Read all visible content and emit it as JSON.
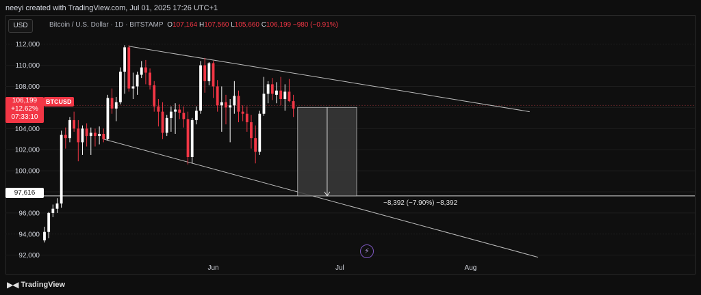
{
  "header": {
    "credit": "neeyi created with TradingView.com, Jul 01, 2025 17:26 UTC+1"
  },
  "toolbar": {
    "currency_label": "USD"
  },
  "symbol_info": {
    "name": "Bitcoin / U.S. Dollar · 1D · BITSTAMP",
    "open_label": "O",
    "open": "107,164",
    "high_label": "H",
    "high": "107,560",
    "low_label": "L",
    "low": "105,660",
    "close_label": "C",
    "close": "106,199",
    "change": "−980 (−0.91%)"
  },
  "price_badge": {
    "price": "106,199",
    "change": "+12.62%",
    "countdown": "07:33:10",
    "symbol": "BTCUSD"
  },
  "level_badge": {
    "price": "97,616"
  },
  "measurement": {
    "label": "−8,392 (−7.90%) −8,392"
  },
  "footer": {
    "brand": "TradingView"
  },
  "colors": {
    "up": "#ffffff",
    "down": "#f23645",
    "background": "#0f0f0f",
    "grid": "#1e1e1e"
  },
  "icons": {
    "logo": "tradingview-logo-icon",
    "bolt": "lightning-icon"
  },
  "chart_data": {
    "type": "candlestick",
    "y_axis": {
      "ticks": [
        92000,
        94000,
        96000,
        98000,
        100000,
        102000,
        104000,
        106000,
        108000,
        110000,
        112000
      ],
      "tick_labels": [
        "92,000",
        "94,000",
        "96,000",
        "98,000",
        "100,000",
        "102,000",
        "104,000",
        "106,000",
        "108,000",
        "110,000",
        "112,000"
      ],
      "range": [
        91200,
        113600
      ]
    },
    "x_axis": {
      "ticks": [
        {
          "date": "2025-06-01",
          "label": "Jun"
        },
        {
          "date": "2025-07-01",
          "label": "Jul"
        },
        {
          "date": "2025-08-01",
          "label": "Aug"
        }
      ],
      "range": [
        "2025-04-22",
        "2025-08-29"
      ]
    },
    "candles": [
      [
        "2025-04-22",
        93400,
        94700,
        93200,
        94200
      ],
      [
        "2025-04-23",
        94200,
        96100,
        93600,
        96000
      ],
      [
        "2025-04-24",
        96000,
        96800,
        95600,
        96400
      ],
      [
        "2025-04-25",
        96400,
        97400,
        96000,
        96900
      ],
      [
        "2025-04-26",
        96900,
        103800,
        96500,
        103400
      ],
      [
        "2025-04-27",
        103400,
        104100,
        102100,
        103100
      ],
      [
        "2025-04-28",
        103100,
        105100,
        102700,
        104800
      ],
      [
        "2025-04-29",
        104800,
        105600,
        103700,
        104000
      ],
      [
        "2025-04-30",
        104000,
        104800,
        100900,
        102700
      ],
      [
        "2025-05-01",
        102700,
        104300,
        101500,
        104000
      ],
      [
        "2025-05-02",
        104000,
        104500,
        102300,
        103300
      ],
      [
        "2025-05-03",
        103300,
        104100,
        101500,
        103600
      ],
      [
        "2025-05-04",
        103600,
        104000,
        102300,
        103300
      ],
      [
        "2025-05-05",
        103300,
        104200,
        102500,
        103500
      ],
      [
        "2025-05-06",
        103500,
        104000,
        102700,
        103000
      ],
      [
        "2025-05-07",
        103000,
        107200,
        102900,
        106900
      ],
      [
        "2025-05-08",
        106900,
        107800,
        105400,
        105900
      ],
      [
        "2025-05-09",
        105900,
        107000,
        104700,
        106500
      ],
      [
        "2025-05-10",
        106500,
        109800,
        106300,
        109400
      ],
      [
        "2025-05-11",
        109400,
        111900,
        107300,
        111700
      ],
      [
        "2025-05-12",
        111700,
        111900,
        107500,
        107800
      ],
      [
        "2025-05-13",
        107800,
        109300,
        106800,
        108000
      ],
      [
        "2025-05-14",
        108000,
        109400,
        107200,
        109100
      ],
      [
        "2025-05-15",
        109100,
        110400,
        108800,
        109800
      ],
      [
        "2025-05-16",
        109800,
        110500,
        108200,
        109300
      ],
      [
        "2025-05-17",
        109300,
        109700,
        107700,
        108100
      ],
      [
        "2025-05-18",
        108100,
        108500,
        105600,
        106100
      ],
      [
        "2025-05-19",
        106100,
        106800,
        104200,
        105600
      ],
      [
        "2025-05-20",
        105600,
        106500,
        103000,
        103600
      ],
      [
        "2025-05-21",
        103600,
        105300,
        103300,
        105000
      ],
      [
        "2025-05-22",
        105000,
        106100,
        103700,
        105600
      ],
      [
        "2025-05-23",
        105600,
        106400,
        103500,
        105800
      ],
      [
        "2025-05-24",
        105800,
        106300,
        104900,
        105500
      ],
      [
        "2025-05-25",
        105500,
        106100,
        104100,
        104900
      ],
      [
        "2025-05-26",
        104900,
        105600,
        100600,
        101300
      ],
      [
        "2025-05-27",
        101300,
        105000,
        100700,
        104800
      ],
      [
        "2025-05-28",
        104800,
        106100,
        104400,
        105700
      ],
      [
        "2025-05-29",
        105700,
        110400,
        105400,
        110000
      ],
      [
        "2025-05-30",
        110000,
        110700,
        107400,
        108500
      ],
      [
        "2025-05-31",
        108500,
        110300,
        108100,
        110200
      ],
      [
        "2025-06-01",
        110200,
        110400,
        106900,
        108000
      ],
      [
        "2025-06-02",
        108000,
        108600,
        105600,
        106200
      ],
      [
        "2025-06-03",
        106200,
        108000,
        103700,
        106500
      ],
      [
        "2025-06-04",
        106500,
        107200,
        104400,
        106000
      ],
      [
        "2025-06-05",
        106000,
        106800,
        102700,
        106200
      ],
      [
        "2025-06-06",
        106200,
        108500,
        105400,
        107100
      ],
      [
        "2025-06-07",
        107100,
        107600,
        104600,
        105600
      ],
      [
        "2025-06-08",
        105600,
        106200,
        104700,
        105400
      ],
      [
        "2025-06-09",
        105400,
        106100,
        103700,
        104600
      ],
      [
        "2025-06-10",
        104600,
        105300,
        102100,
        103100
      ],
      [
        "2025-06-11",
        103100,
        104300,
        100700,
        101800
      ],
      [
        "2025-06-12",
        101800,
        105700,
        101500,
        105400
      ],
      [
        "2025-06-13",
        105400,
        108900,
        105200,
        107300
      ],
      [
        "2025-06-14",
        107300,
        108500,
        106400,
        108200
      ],
      [
        "2025-06-15",
        108200,
        108800,
        106700,
        107300
      ],
      [
        "2025-06-16",
        107200,
        108400,
        106400,
        107600
      ],
      [
        "2025-06-17",
        107600,
        108900,
        106200,
        106800
      ],
      [
        "2025-06-18",
        106800,
        108200,
        105700,
        107500
      ],
      [
        "2025-06-19",
        107500,
        108700,
        106500,
        106600
      ],
      [
        "2025-06-20",
        106600,
        107200,
        105100,
        105900
      ]
    ],
    "trendlines": [
      {
        "name": "upper",
        "from": [
          "2025-05-12",
          111800
        ],
        "to": [
          "2025-08-15",
          105600
        ]
      },
      {
        "name": "lower",
        "from": [
          "2025-05-06",
          103000
        ],
        "to": [
          "2025-08-17",
          91800
        ]
      }
    ],
    "horizontal_level": 97616,
    "price_range_box": {
      "from_date": "2025-06-21",
      "to_date": "2025-07-05",
      "top": 106008,
      "bottom": 97616
    }
  }
}
